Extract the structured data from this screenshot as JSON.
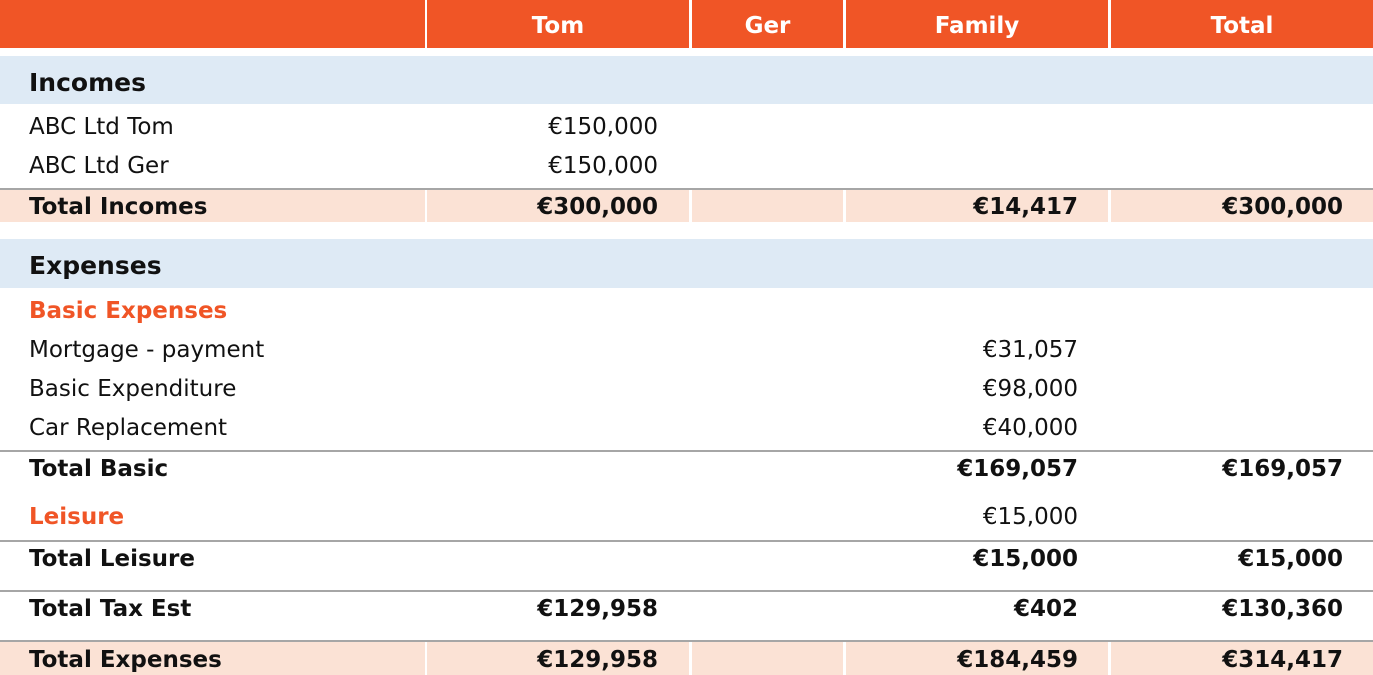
{
  "columns": {
    "label": "",
    "tom": "Tom",
    "ger": "Ger",
    "family": "Family",
    "total": "Total"
  },
  "incomes": {
    "title": "Incomes",
    "rows": [
      {
        "label": "ABC Ltd Tom",
        "tom": "€150,000"
      },
      {
        "label": "ABC Ltd Ger",
        "tom": "€150,000"
      }
    ],
    "total": {
      "label": "Total Incomes",
      "tom": "€300,000",
      "ger": "",
      "family": "€14,417",
      "total": "€300,000"
    }
  },
  "expenses": {
    "title": "Expenses",
    "basic": {
      "title": "Basic Expenses",
      "rows": [
        {
          "label": "Mortgage - payment",
          "family": "€31,057"
        },
        {
          "label": "Basic Expenditure",
          "family": "€98,000"
        },
        {
          "label": "Car Replacement",
          "family": "€40,000"
        }
      ],
      "total": {
        "label": "Total Basic",
        "family": "€169,057",
        "total": "€169,057"
      }
    },
    "leisure": {
      "title": "Leisure",
      "family": "€15,000",
      "total": {
        "label": "Total Leisure",
        "family": "€15,000",
        "total": "€15,000"
      }
    },
    "tax": {
      "label": "Total Tax Est",
      "tom": "€129,958",
      "family": "€402",
      "total": "€130,360"
    },
    "total": {
      "label": "Total Expenses",
      "tom": "€129,958",
      "ger": "",
      "family": "€184,459",
      "total": "€314,417"
    }
  },
  "colors": {
    "accent": "#f05526",
    "section_bg": "#deeaf5",
    "total_bg": "#fbe2d5",
    "rule": "#a6a6a6"
  }
}
